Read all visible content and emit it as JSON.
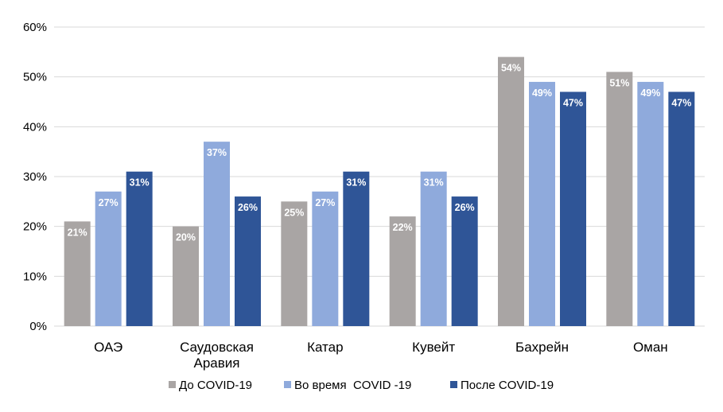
{
  "chart_data": {
    "type": "bar",
    "categories": [
      [
        "ОАЭ"
      ],
      [
        "Саудовская",
        "Аравия"
      ],
      [
        "Катар"
      ],
      [
        "Кувейт"
      ],
      [
        "Бахрейн"
      ],
      [
        "Оман"
      ]
    ],
    "series": [
      {
        "name": "До COVID-19",
        "color": "#a9a5a4",
        "values": [
          21,
          20,
          25,
          22,
          54,
          51
        ]
      },
      {
        "name": "Во время  COVID -19",
        "color": "#8faadc",
        "values": [
          27,
          37,
          27,
          31,
          49,
          49
        ]
      },
      {
        "name": "После COVID-19",
        "color": "#2f5597",
        "values": [
          31,
          26,
          31,
          26,
          47,
          47
        ]
      }
    ],
    "ylim": [
      0,
      60
    ],
    "yticks": [
      0,
      10,
      20,
      30,
      40,
      50,
      60
    ],
    "tick_suffix": "%",
    "label_suffix": "%",
    "grid": true,
    "legend": "bottom"
  }
}
